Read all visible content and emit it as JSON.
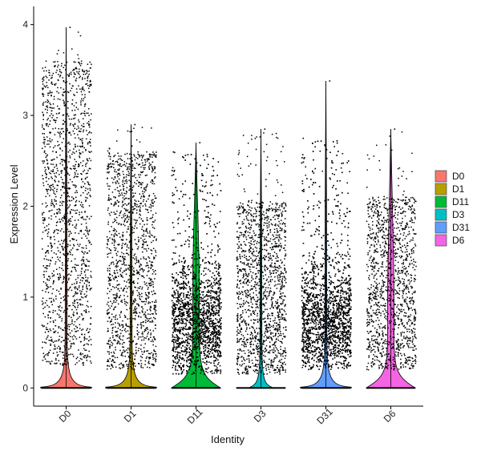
{
  "chart_data": {
    "type": "violin",
    "xlabel": "Identity",
    "ylabel": "Expression Level",
    "ylim": [
      -0.2,
      4.2
    ],
    "yticks": [
      0,
      1,
      2,
      3,
      4
    ],
    "grid": false,
    "legend_position": "right",
    "categories": [
      "D0",
      "D1",
      "D11",
      "D3",
      "D31",
      "D6"
    ],
    "series": [
      {
        "name": "D0",
        "color": "#F8766D",
        "max": 3.97,
        "n_points": 1500,
        "n_zero": 3000,
        "dist": {
          "type": "wide",
          "lo": 0.25,
          "hi": 3.6
        }
      },
      {
        "name": "D1",
        "color": "#B79F00",
        "max": 2.9,
        "n_points": 1400,
        "n_zero": 3000,
        "dist": {
          "type": "wide",
          "lo": 0.2,
          "hi": 2.6
        }
      },
      {
        "name": "D11",
        "color": "#00BA38",
        "max": 2.7,
        "n_points": 3200,
        "n_zero": 3000,
        "dist": {
          "type": "skewed",
          "lo": 0.15,
          "hi": 2.6
        }
      },
      {
        "name": "D3",
        "color": "#00BFC4",
        "max": 2.85,
        "n_points": 1500,
        "n_zero": 3000,
        "dist": {
          "type": "wide",
          "lo": 0.15,
          "hi": 2.05
        }
      },
      {
        "name": "D31",
        "color": "#619CFF",
        "max": 3.38,
        "n_points": 3500,
        "n_zero": 3000,
        "dist": {
          "type": "skewed",
          "lo": 0.2,
          "hi": 2.75
        }
      },
      {
        "name": "D6",
        "color": "#F564E3",
        "max": 2.85,
        "n_points": 1300,
        "n_zero": 3000,
        "dist": {
          "type": "wide",
          "lo": 0.2,
          "hi": 2.1
        }
      }
    ]
  }
}
